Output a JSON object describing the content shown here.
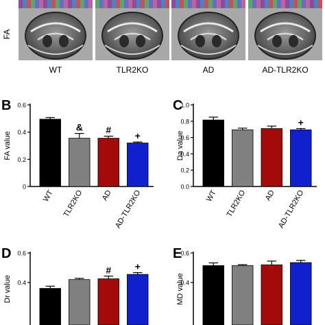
{
  "figure": {
    "row_label": "FA",
    "image_labels": [
      "WT",
      "TLR2KO",
      "AD",
      "AD-TLR2KO"
    ]
  },
  "colors": {
    "WT": "#000000",
    "TLR2KO": "#808080",
    "AD": "#a50a0a",
    "AD-TLR2KO": "#1020cc",
    "color_strip": [
      "#7a2a90",
      "#2a6fb0",
      "#c03040",
      "#3a9a50",
      "#5050c0",
      "#b04a8a"
    ]
  },
  "chart_data": [
    {
      "type": "bar",
      "panel": "B",
      "categories": [
        "WT",
        "TLR2KO",
        "AD",
        "AD-TLR2KO"
      ],
      "values": [
        0.495,
        0.355,
        0.355,
        0.32
      ],
      "errors": [
        0.012,
        0.035,
        0.015,
        0.007
      ],
      "significance": [
        "",
        "&",
        "#",
        "+"
      ],
      "ylabel": "FA value",
      "ylim": [
        0,
        0.6
      ],
      "yticks": [
        "0",
        "0.2",
        "0.4",
        "0.6"
      ],
      "ytick_values": [
        0,
        0.2,
        0.4,
        0.6
      ]
    },
    {
      "type": "bar",
      "panel": "C",
      "categories": [
        "WT",
        "TLR2KO",
        "AD",
        "AD-TLR2KO"
      ],
      "values": [
        0.815,
        0.695,
        0.71,
        0.695
      ],
      "errors": [
        0.035,
        0.02,
        0.03,
        0.015
      ],
      "significance": [
        "",
        "",
        "",
        "+"
      ],
      "ylabel": "Da value",
      "ylim": [
        0,
        1.0
      ],
      "yticks": [
        "0.0",
        "0.2",
        "0.4",
        "0.6",
        "0.8",
        "1.0"
      ],
      "ytick_values": [
        0,
        0.2,
        0.4,
        0.6,
        0.8,
        1.0
      ]
    },
    {
      "type": "bar",
      "panel": "D",
      "categories": [
        "WT",
        "TLR2KO",
        "AD",
        "AD-TLR2KO"
      ],
      "values": [
        0.36,
        0.42,
        0.425,
        0.455
      ],
      "errors": [
        0.015,
        0.008,
        0.018,
        0.012
      ],
      "significance": [
        "",
        "",
        "#",
        "+"
      ],
      "ylabel": "Dr value",
      "ylim": [
        0,
        0.6
      ],
      "yticks": [
        "0.4",
        "0.6"
      ],
      "ytick_values": [
        0.4,
        0.6
      ]
    },
    {
      "type": "bar",
      "panel": "E",
      "categories": [
        "WT",
        "TLR2KO",
        "AD",
        "AD-TLR2KO"
      ],
      "values": [
        0.515,
        0.515,
        0.52,
        0.535
      ],
      "errors": [
        0.018,
        0.006,
        0.025,
        0.015
      ],
      "significance": [
        "",
        "",
        "",
        ""
      ],
      "ylabel": "MD value",
      "ylim": [
        0,
        0.6
      ],
      "yticks": [
        "0.4",
        "0.6"
      ],
      "ytick_values": [
        0.4,
        0.6
      ]
    }
  ]
}
